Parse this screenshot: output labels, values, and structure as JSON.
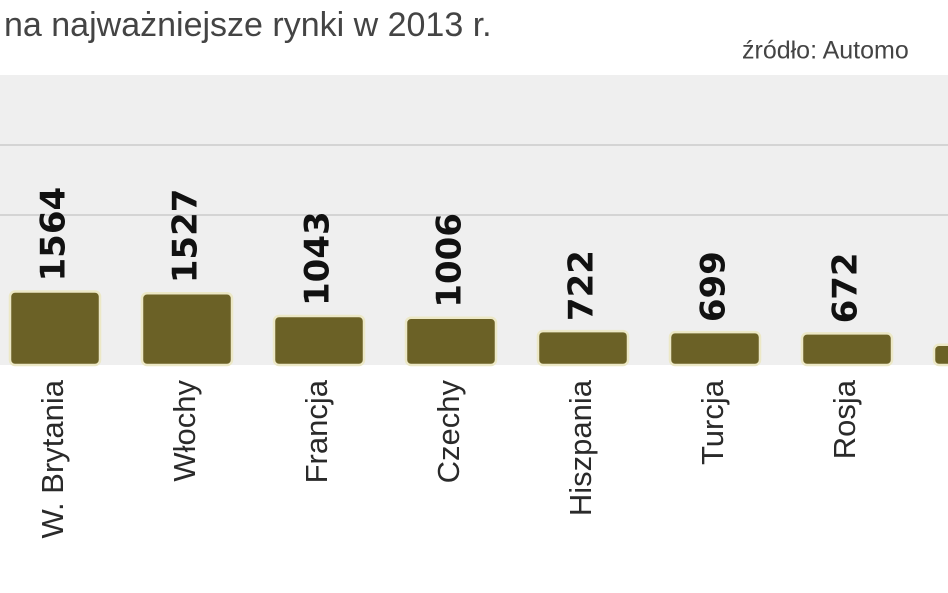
{
  "chart_data": {
    "type": "bar",
    "title": "na najważniejsze rynki w 2013 r.",
    "source": "źródło: Automo",
    "categories": [
      "W. Brytania",
      "Włochy",
      "Francja",
      "Czechy",
      "Hiszpania",
      "Turcja",
      "Rosja",
      null
    ],
    "values": [
      1564,
      1527,
      1043,
      1006,
      722,
      699,
      672,
      430
    ],
    "value_labels": [
      "1564",
      "1527",
      "1043",
      "1006",
      "722",
      "699",
      "672",
      null
    ],
    "color": "#6b6126"
  }
}
